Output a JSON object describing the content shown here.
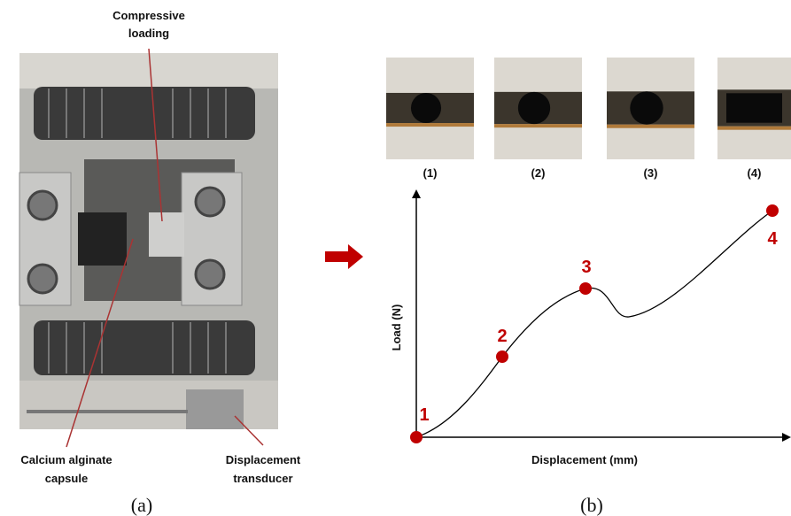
{
  "panel_a": {
    "labels": {
      "compressive_loading": [
        "Compressive",
        "loading"
      ],
      "capsule": [
        "Calcium alginate",
        "capsule"
      ],
      "transducer": [
        "Displacement",
        "transducer"
      ]
    },
    "caption": "(a)"
  },
  "panel_b": {
    "frames": [
      "(1)",
      "(2)",
      "(3)",
      "(4)"
    ],
    "y_axis_label": "Load (N)",
    "x_axis_label": "Displacement (mm)",
    "points": [
      "1",
      "2",
      "3",
      "4"
    ],
    "caption": "(b)"
  }
}
